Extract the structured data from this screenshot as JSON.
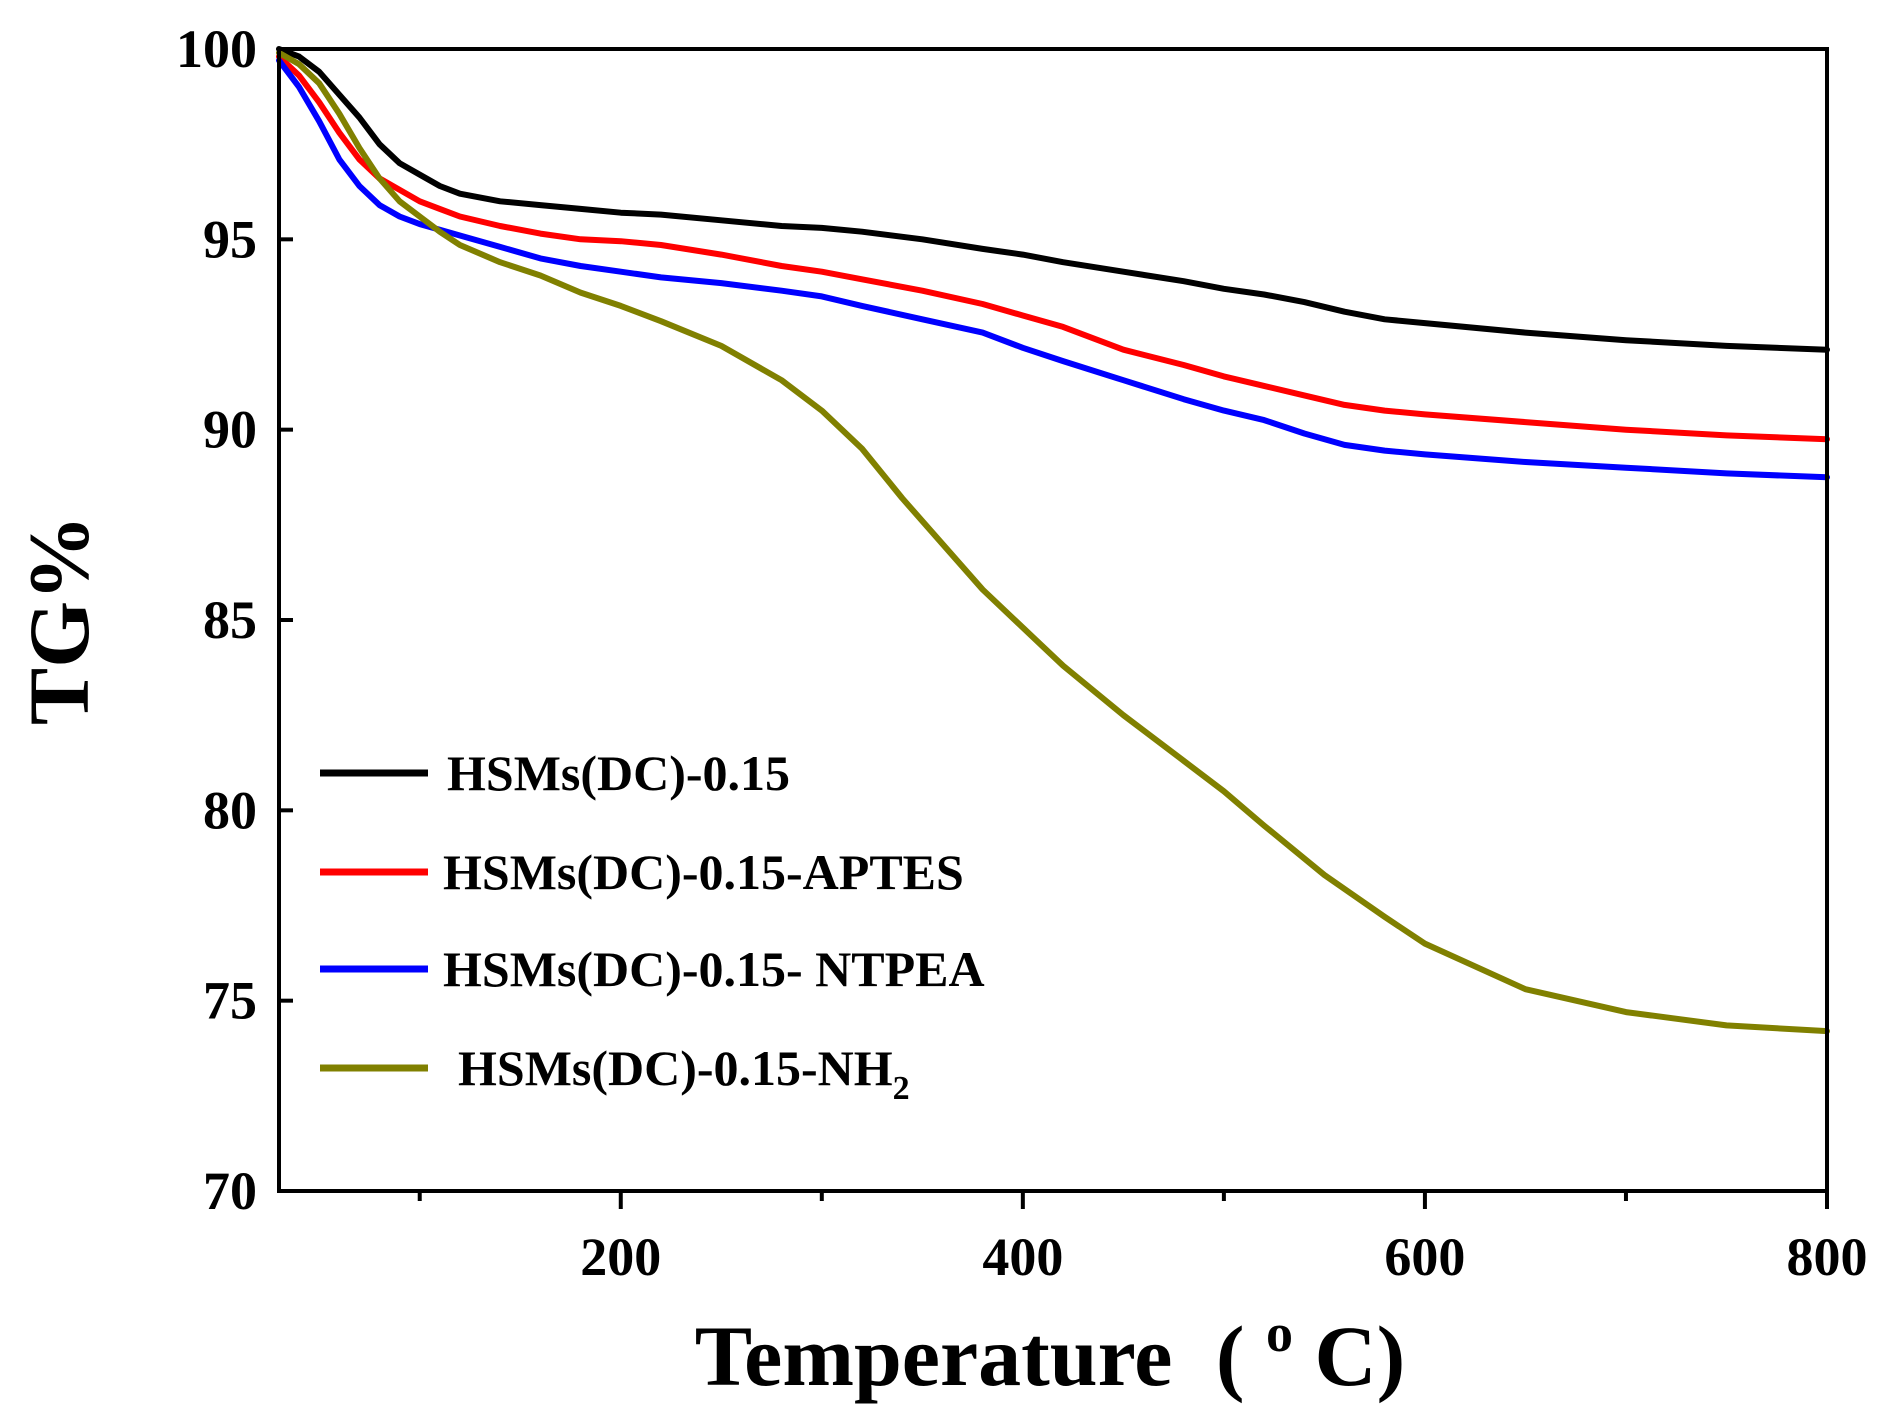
{
  "chart_data": {
    "type": "line",
    "title": "",
    "xlabel": "Temperature",
    "xlabel_unit_prefix": "(",
    "xlabel_unit_sup": "o",
    "xlabel_unit_suffix": "C)",
    "ylabel": "TG%",
    "xlim": [
      30,
      800
    ],
    "ylim": [
      70,
      100
    ],
    "xticks": [
      200,
      400,
      600,
      800
    ],
    "xticks_minor": [
      100,
      300,
      500,
      700
    ],
    "yticks": [
      70,
      75,
      80,
      85,
      90,
      95,
      100
    ],
    "legend_position": "bottom-left",
    "series": [
      {
        "name": "HSMs(DC)-0.15",
        "color": "#000000",
        "x": [
          30,
          40,
          50,
          60,
          70,
          80,
          90,
          100,
          110,
          120,
          140,
          160,
          180,
          200,
          220,
          250,
          280,
          300,
          320,
          350,
          380,
          400,
          420,
          450,
          480,
          500,
          520,
          540,
          560,
          580,
          600,
          650,
          700,
          750,
          800
        ],
        "y": [
          100.0,
          99.8,
          99.4,
          98.8,
          98.2,
          97.5,
          97.0,
          96.7,
          96.4,
          96.2,
          96.0,
          95.9,
          95.8,
          95.7,
          95.65,
          95.5,
          95.35,
          95.3,
          95.2,
          95.0,
          94.75,
          94.6,
          94.4,
          94.15,
          93.9,
          93.7,
          93.55,
          93.35,
          93.1,
          92.9,
          92.8,
          92.55,
          92.35,
          92.2,
          92.1
        ]
      },
      {
        "name": "HSMs(DC)-0.15-APTES",
        "color": "#ff0000",
        "x": [
          30,
          40,
          50,
          60,
          70,
          80,
          90,
          100,
          110,
          120,
          140,
          160,
          180,
          200,
          220,
          250,
          280,
          300,
          320,
          350,
          380,
          400,
          420,
          450,
          480,
          500,
          520,
          540,
          560,
          580,
          600,
          650,
          700,
          750,
          800
        ],
        "y": [
          99.8,
          99.3,
          98.6,
          97.8,
          97.1,
          96.6,
          96.3,
          96.0,
          95.8,
          95.6,
          95.35,
          95.15,
          95.0,
          94.95,
          94.85,
          94.6,
          94.3,
          94.15,
          93.95,
          93.65,
          93.3,
          93.0,
          92.7,
          92.1,
          91.7,
          91.4,
          91.15,
          90.9,
          90.65,
          90.5,
          90.4,
          90.2,
          90.0,
          89.85,
          89.75
        ]
      },
      {
        "name": "HSMs(DC)-0.15- NTPEA",
        "color": "#0000ff",
        "x": [
          30,
          40,
          50,
          60,
          70,
          80,
          90,
          100,
          110,
          120,
          140,
          160,
          180,
          200,
          220,
          250,
          280,
          300,
          320,
          350,
          380,
          400,
          420,
          450,
          480,
          500,
          520,
          540,
          560,
          580,
          600,
          650,
          700,
          750,
          800
        ],
        "y": [
          99.7,
          99.0,
          98.1,
          97.1,
          96.4,
          95.9,
          95.6,
          95.4,
          95.25,
          95.1,
          94.8,
          94.5,
          94.3,
          94.15,
          94.0,
          93.85,
          93.65,
          93.5,
          93.25,
          92.9,
          92.55,
          92.15,
          91.8,
          91.3,
          90.8,
          90.5,
          90.25,
          89.9,
          89.6,
          89.45,
          89.35,
          89.15,
          89.0,
          88.85,
          88.75
        ]
      },
      {
        "name": "HSMs(DC)-0.15-NH",
        "name_sub": "2",
        "color": "#808000",
        "x": [
          30,
          40,
          50,
          60,
          70,
          80,
          90,
          100,
          110,
          120,
          140,
          160,
          180,
          200,
          220,
          250,
          280,
          300,
          320,
          340,
          360,
          380,
          400,
          420,
          450,
          480,
          500,
          520,
          550,
          580,
          600,
          650,
          700,
          750,
          800
        ],
        "y": [
          99.9,
          99.6,
          99.1,
          98.3,
          97.4,
          96.6,
          96.0,
          95.6,
          95.2,
          94.85,
          94.4,
          94.05,
          93.6,
          93.25,
          92.85,
          92.2,
          91.3,
          90.5,
          89.5,
          88.2,
          87.0,
          85.8,
          84.8,
          83.8,
          82.5,
          81.3,
          80.5,
          79.6,
          78.3,
          77.2,
          76.5,
          75.3,
          74.7,
          74.35,
          74.2
        ]
      }
    ]
  }
}
